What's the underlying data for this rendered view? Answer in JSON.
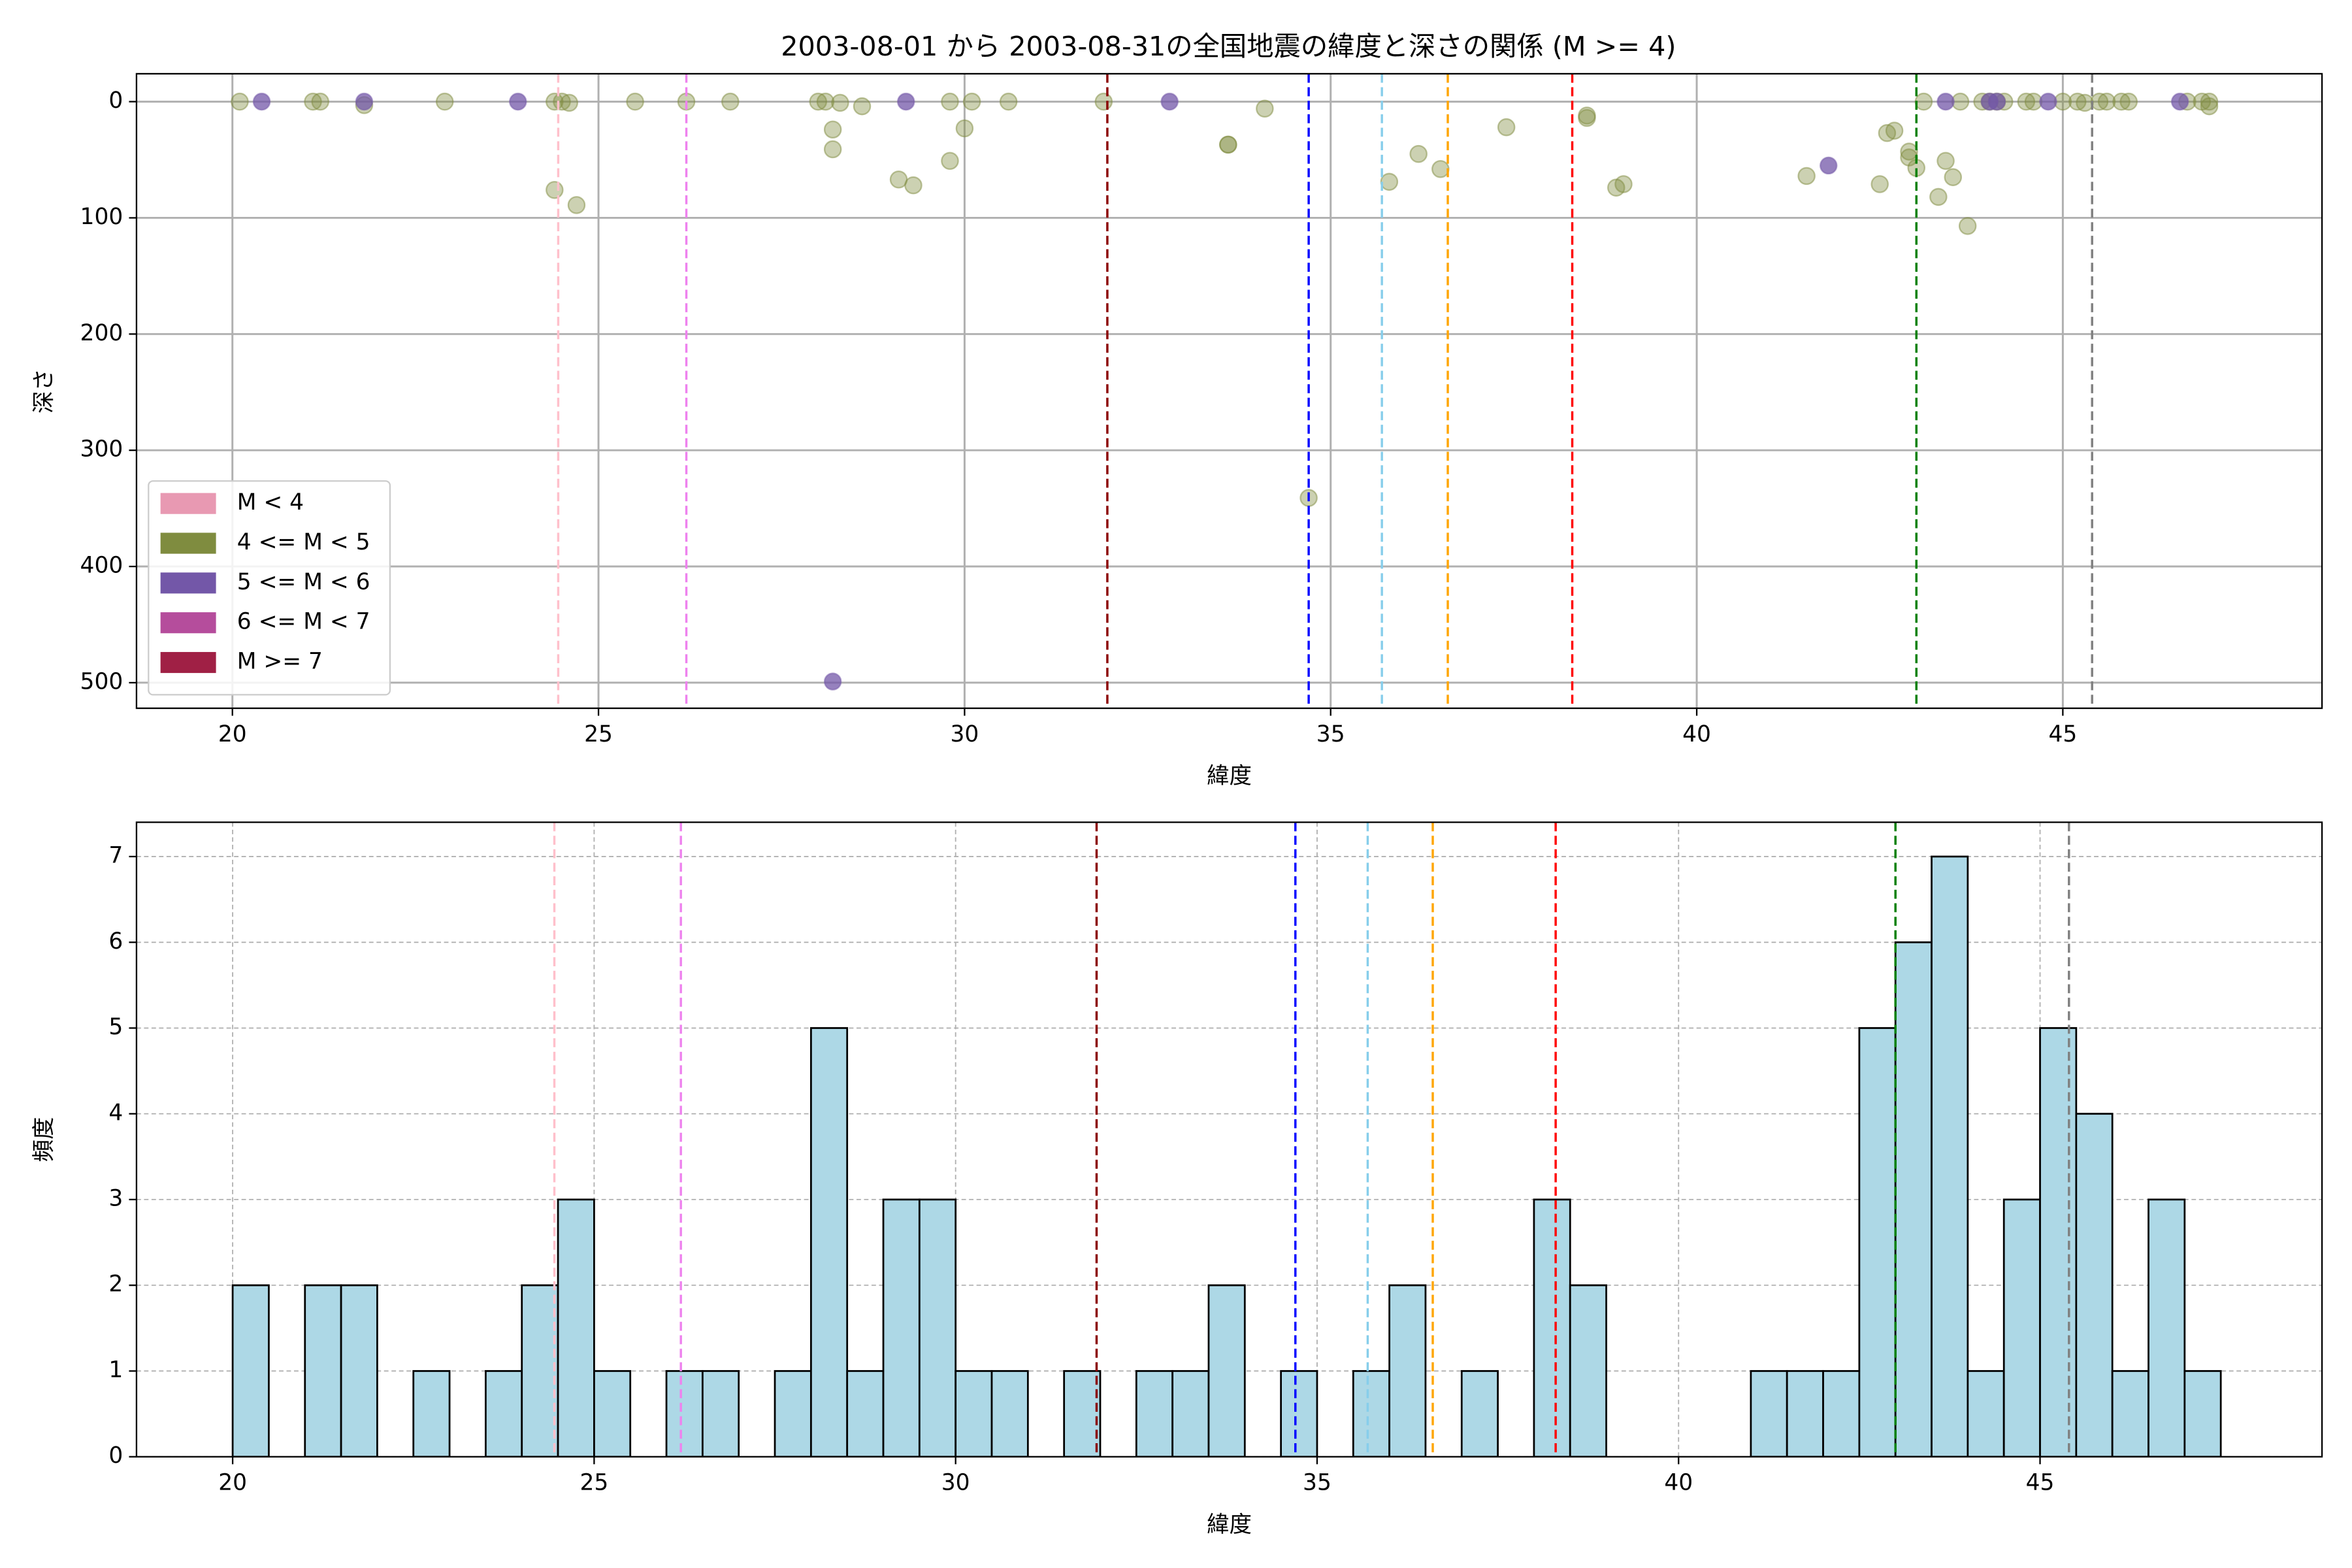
{
  "chart_data": [
    {
      "type": "scatter",
      "title": "2003-08-01 から 2003-08-31の全国地震の緯度と深さの関係 (M >= 4)",
      "x_label": "緯度",
      "y_label": "深さ",
      "xlim": [
        18.69,
        48.54
      ],
      "ylim": [
        -24,
        522
      ],
      "y_inverted": true,
      "xticks": [
        20,
        25,
        30,
        35,
        40,
        45
      ],
      "yticks": [
        0,
        100,
        200,
        300,
        400,
        500
      ],
      "grid": true,
      "legend": "lower left",
      "series": [
        {
          "name": "M < 4",
          "color": "#e899b2",
          "x": [],
          "values": []
        },
        {
          "name": "4 <= M < 5",
          "color": "#7f8c3f",
          "x": [
            20.1,
            21.1,
            21.2,
            21.8,
            22.9,
            24.4,
            24.5,
            24.6,
            24.4,
            24.7,
            25.5,
            26.2,
            26.8,
            28.0,
            28.1,
            28.3,
            28.6,
            28.2,
            28.2,
            29.1,
            29.3,
            29.8,
            29.8,
            30.0,
            30.1,
            30.6,
            31.9,
            33.6,
            33.6,
            34.1,
            34.7,
            35.8,
            36.2,
            36.5,
            37.4,
            38.5,
            38.5,
            38.9,
            39.0,
            41.5,
            42.5,
            42.6,
            42.7,
            42.9,
            42.9,
            43.0,
            43.1,
            43.4,
            43.3,
            43.5,
            43.6,
            43.7,
            43.9,
            44.0,
            44.1,
            44.2,
            44.5,
            44.6,
            45.0,
            45.2,
            45.3,
            45.5,
            45.6,
            45.8,
            45.9,
            46.7,
            46.9,
            47.0,
            47.0
          ],
          "values": [
            0,
            0,
            0,
            3,
            0,
            0,
            0,
            1,
            76,
            89,
            0,
            0,
            0,
            0,
            0,
            1,
            4,
            24,
            41,
            67,
            72,
            0,
            51,
            23,
            0,
            0,
            0,
            37,
            37,
            6,
            341,
            69,
            45,
            58,
            22,
            12,
            14,
            74,
            71,
            64,
            71,
            27,
            25,
            43,
            48,
            57,
            0,
            51,
            82,
            65,
            0,
            107,
            0,
            0,
            0,
            0,
            0,
            0,
            0,
            0,
            1,
            0,
            0,
            0,
            0,
            0,
            0,
            4,
            0
          ]
        },
        {
          "name": "5 <= M < 6",
          "color": "#7357a8",
          "x": [
            20.4,
            21.8,
            23.9,
            29.2,
            32.8,
            28.2,
            41.8,
            43.4,
            44.1,
            44.0,
            44.8,
            46.6
          ],
          "values": [
            0,
            0,
            0,
            0,
            0,
            499,
            55,
            0,
            0,
            0,
            0,
            0
          ]
        },
        {
          "name": "6 <= M < 7",
          "color": "#b54d9c",
          "x": [],
          "values": []
        },
        {
          "name": "M >= 7",
          "color": "#a02045",
          "x": [],
          "values": []
        }
      ],
      "vlines": [
        {
          "x": 24.45,
          "color": "pink"
        },
        {
          "x": 26.2,
          "color": "violet"
        },
        {
          "x": 31.95,
          "color": "darkred"
        },
        {
          "x": 34.7,
          "color": "blue"
        },
        {
          "x": 35.7,
          "color": "skyblue"
        },
        {
          "x": 36.6,
          "color": "orange"
        },
        {
          "x": 38.3,
          "color": "red"
        },
        {
          "x": 43.0,
          "color": "green"
        },
        {
          "x": 45.4,
          "color": "gray"
        }
      ]
    },
    {
      "type": "histogram",
      "x_label": "緯度",
      "y_label": "頻度",
      "xlim": [
        18.67,
        48.9
      ],
      "ylim": [
        0,
        7.4
      ],
      "xticks": [
        20,
        25,
        30,
        35,
        40,
        45
      ],
      "yticks": [
        0,
        1,
        2,
        3,
        4,
        5,
        6,
        7
      ],
      "grid": true,
      "color": "#add8e6",
      "edgecolor": "#000000",
      "bins": [
        20.0,
        20.5,
        21.0,
        21.5,
        22.0,
        22.5,
        23.0,
        23.5,
        24.0,
        24.5,
        25.0,
        25.5,
        26.0,
        26.5,
        27.0,
        27.5,
        28.0,
        28.5,
        29.0,
        29.5,
        30.0,
        30.5,
        31.0,
        31.5,
        32.0,
        32.5,
        33.0,
        33.5,
        34.0,
        34.5,
        35.0,
        35.5,
        36.0,
        36.5,
        37.0,
        37.5,
        38.0,
        38.5,
        39.0,
        39.5,
        40.0,
        40.5,
        41.0,
        41.5,
        42.0,
        42.5,
        43.0,
        43.5,
        44.0,
        44.5,
        45.0,
        45.5,
        46.0,
        46.5,
        47.0,
        47.5
      ],
      "values": [
        2,
        0,
        2,
        2,
        0,
        1,
        0,
        1,
        2,
        3,
        1,
        0,
        1,
        1,
        0,
        1,
        5,
        1,
        3,
        3,
        1,
        1,
        0,
        1,
        0,
        1,
        1,
        2,
        0,
        1,
        0,
        1,
        2,
        0,
        1,
        0,
        3,
        2,
        0,
        0,
        0,
        0,
        1,
        1,
        1,
        5,
        6,
        7,
        1,
        3,
        5,
        4,
        1,
        3,
        1
      ],
      "vlines": [
        {
          "x": 24.45,
          "color": "pink"
        },
        {
          "x": 26.2,
          "color": "violet"
        },
        {
          "x": 31.95,
          "color": "darkred"
        },
        {
          "x": 34.7,
          "color": "blue"
        },
        {
          "x": 35.7,
          "color": "skyblue"
        },
        {
          "x": 36.6,
          "color": "orange"
        },
        {
          "x": 38.3,
          "color": "red"
        },
        {
          "x": 43.0,
          "color": "green"
        },
        {
          "x": 45.4,
          "color": "gray"
        }
      ]
    }
  ]
}
